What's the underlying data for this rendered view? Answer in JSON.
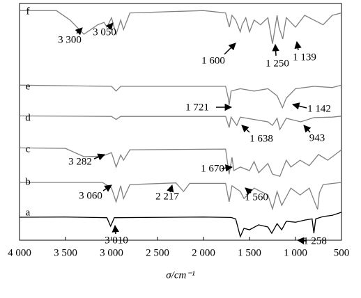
{
  "chart_data": {
    "type": "line",
    "x_label": "σ/cm⁻¹",
    "xlim": [
      4000,
      500
    ],
    "ylim": [
      0,
      100
    ],
    "xticks": [
      {
        "value": 4000,
        "label": "4 000"
      },
      {
        "value": 3500,
        "label": "3 500"
      },
      {
        "value": 3000,
        "label": "3 000"
      },
      {
        "value": 2500,
        "label": "2 500"
      },
      {
        "value": 2000,
        "label": "2 000"
      },
      {
        "value": 1500,
        "label": "1 500"
      },
      {
        "value": 1000,
        "label": "1 000"
      },
      500
    ],
    "series": [
      {
        "name": "f",
        "color": "#808080",
        "x": [
          4000,
          3600,
          3450,
          3300,
          3150,
          3080,
          3050,
          3000,
          2950,
          2900,
          2870,
          2800,
          2000,
          1760,
          1720,
          1690,
          1650,
          1600,
          1580,
          1540,
          1500,
          1450,
          1380,
          1300,
          1250,
          1200,
          1180,
          1139,
          1100,
          1050,
          1000,
          900,
          800,
          700,
          600,
          500
        ],
        "values": [
          97,
          97,
          93,
          87,
          91,
          92,
          90,
          94,
          87,
          93,
          89,
          96,
          97,
          96,
          90,
          95,
          93,
          88,
          91,
          94,
          88,
          93,
          91,
          94,
          83,
          95,
          90,
          85,
          94,
          92,
          90,
          95,
          93,
          91,
          95,
          96
        ]
      },
      {
        "name": "e",
        "color": "#808080",
        "x": [
          4000,
          3000,
          2950,
          2900,
          1760,
          1730,
          1721,
          1700,
          1600,
          1450,
          1300,
          1200,
          1142,
          1100,
          1000,
          800,
          600,
          500
        ],
        "values": [
          65.5,
          65,
          63,
          65,
          65,
          60,
          57,
          63,
          64,
          63,
          64,
          61,
          56,
          60,
          64,
          65,
          64.5,
          65.5
        ]
      },
      {
        "name": "d",
        "color": "#808080",
        "x": [
          4000,
          3000,
          2950,
          2900,
          1760,
          1721,
          1700,
          1638,
          1600,
          1450,
          1300,
          1250,
          1200,
          1170,
          1100,
          943,
          800,
          600,
          500
        ],
        "values": [
          52.5,
          52.3,
          51,
          52.3,
          52.3,
          47.6,
          52,
          48.5,
          52,
          51,
          50,
          48.5,
          51.5,
          46.8,
          51.5,
          50,
          51.8,
          52,
          52.4
        ]
      },
      {
        "name": "c",
        "color": "#808080",
        "x": [
          4000,
          3500,
          3300,
          3100,
          3000,
          2950,
          2900,
          2870,
          2800,
          1760,
          1721,
          1690,
          1670,
          1600,
          1500,
          1450,
          1400,
          1300,
          1250,
          1170,
          1100,
          1050,
          950,
          850,
          750,
          650,
          500
        ],
        "values": [
          39,
          38.8,
          35.3,
          35.5,
          37,
          30.9,
          36,
          33.8,
          38.2,
          38.5,
          27.9,
          35,
          29.4,
          30.9,
          29.4,
          33.2,
          28.5,
          32.4,
          27.9,
          27,
          33.8,
          30.9,
          33.8,
          31.5,
          36.2,
          33.8,
          38.2
        ]
      },
      {
        "name": "b",
        "color": "#808080",
        "x": [
          4000,
          3100,
          3060,
          3000,
          2950,
          2900,
          2870,
          2800,
          2300,
          2217,
          2150,
          1760,
          1721,
          1690,
          1600,
          1560,
          1450,
          1300,
          1250,
          1200,
          1150,
          1050,
          950,
          850,
          760,
          740,
          700,
          500
        ],
        "values": [
          24.4,
          24.4,
          23.5,
          22,
          16.2,
          23,
          17.6,
          23.5,
          24.2,
          20.6,
          24,
          24,
          16.2,
          23,
          20.6,
          17.6,
          22,
          19.1,
          13.2,
          20.6,
          14.7,
          22,
          19.1,
          22,
          13,
          20,
          23.5,
          24.4
        ]
      },
      {
        "name": "a",
        "color": "#000000",
        "x": [
          4000,
          3500,
          3050,
          3010,
          2970,
          2000,
          1700,
          1650,
          1600,
          1560,
          1500,
          1400,
          1300,
          1258,
          1200,
          1150,
          1100,
          1000,
          900,
          820,
          800,
          780,
          700,
          600,
          500
        ],
        "values": [
          9.7,
          9.8,
          9.5,
          5.9,
          9.5,
          9.8,
          9.6,
          9,
          1.5,
          5,
          4.4,
          6.5,
          5.6,
          2.9,
          7,
          4.4,
          8,
          7.6,
          8.5,
          9,
          2.9,
          9,
          10,
          10.5,
          11.8
        ]
      }
    ],
    "annotations": [
      "3 300",
      "3 050",
      "1 600",
      "1 250",
      "1 139",
      "1 721",
      "1 142",
      "1 638",
      "943",
      "3 282",
      "1 670",
      "3 060",
      "2 217",
      "1 560",
      "3 010",
      "1 258"
    ]
  }
}
